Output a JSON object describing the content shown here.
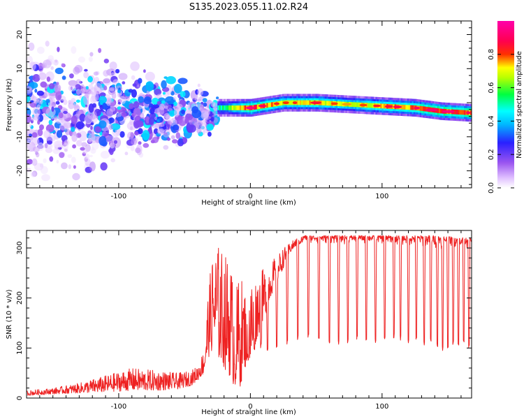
{
  "figure_title": "S135.2023.055.11.02.R24",
  "chart_data": [
    {
      "type": "heatmap",
      "title": "",
      "xlabel": "Height of straight line (km)",
      "ylabel": "Frequency (Hz)",
      "xlim": [
        -170,
        168
      ],
      "ylim": [
        -25,
        24
      ],
      "xticks": [
        -100,
        0,
        100
      ],
      "yticks": [
        -20,
        -10,
        0,
        10,
        20
      ],
      "grid": false,
      "colorbar": {
        "label": "Normalized spectral amplitude",
        "range": [
          0,
          1
        ],
        "ticks": [
          "0.0",
          "0.2",
          "0.4",
          "0.6",
          "0.8"
        ],
        "tick_values": [
          0.0,
          0.2,
          0.4,
          0.6,
          0.8
        ],
        "colormap": [
          "#ffffff",
          "#d7a8ff",
          "#7a2be8",
          "#1a2cff",
          "#00e5ff",
          "#00ff40",
          "#ffff00",
          "#ff1a00",
          "#ff00aa"
        ]
      },
      "ridge": {
        "description_x": [
          -25,
          0,
          25,
          50,
          75,
          100,
          125,
          145,
          168
        ],
        "center_frequency_hz": [
          -1.5,
          -1.5,
          0.0,
          0.0,
          -0.5,
          -1.0,
          -1.5,
          -2.5,
          -3.0
        ],
        "peak_amplitude": [
          0.5,
          0.9,
          0.75,
          0.8,
          0.7,
          0.8,
          0.85,
          0.9,
          0.85
        ]
      },
      "scatter_region": {
        "x_range": [
          -170,
          -25
        ],
        "frequency_range": [
          -25,
          24
        ],
        "typical_amplitude": [
          0.05,
          0.45
        ]
      }
    },
    {
      "type": "line",
      "title": "",
      "xlabel": "Height of straight line (km)",
      "ylabel": "SNR (10 * v/v)",
      "xlim": [
        -170,
        168
      ],
      "ylim": [
        0,
        335
      ],
      "xticks": [
        -100,
        0,
        100
      ],
      "yticks": [
        0,
        100,
        200,
        300
      ],
      "grid": false,
      "series": [
        {
          "color": "#ee2222",
          "x": [
            -170,
            -150,
            -130,
            -110,
            -90,
            -70,
            -55,
            -45,
            -40,
            -35,
            -32,
            -28,
            -25,
            -20,
            -15,
            -12,
            -8,
            -5,
            0,
            5,
            10,
            15,
            20,
            25,
            30,
            35,
            40,
            50,
            60,
            80,
            100,
            120,
            140,
            168
          ],
          "envelope_low": [
            5,
            8,
            10,
            12,
            15,
            15,
            18,
            25,
            35,
            50,
            80,
            100,
            80,
            60,
            40,
            20,
            15,
            60,
            60,
            120,
            150,
            200,
            230,
            260,
            290,
            305,
            310,
            305,
            305,
            305,
            305,
            300,
            295,
            300
          ],
          "envelope_high": [
            15,
            20,
            30,
            45,
            60,
            55,
            50,
            55,
            65,
            100,
            220,
            300,
            310,
            290,
            280,
            200,
            260,
            220,
            240,
            240,
            260,
            270,
            285,
            300,
            310,
            320,
            325,
            325,
            325,
            325,
            325,
            325,
            325,
            320
          ]
        }
      ],
      "dropouts": {
        "x": [
          -2,
          3,
          8,
          13,
          20,
          28,
          36,
          44,
          52,
          60,
          67,
          74,
          81,
          88,
          95,
          102,
          109,
          114,
          120,
          126,
          132,
          137,
          142,
          146,
          150,
          154,
          158,
          162,
          166
        ],
        "min_value": [
          80,
          95,
          100,
          95,
          100,
          105,
          115,
          120,
          115,
          110,
          105,
          110,
          115,
          115,
          110,
          115,
          120,
          115,
          110,
          115,
          105,
          110,
          100,
          95,
          100,
          105,
          100,
          110,
          100
        ]
      }
    }
  ]
}
